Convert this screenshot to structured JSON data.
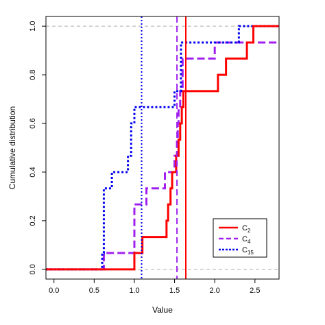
{
  "chart_data": {
    "type": "line",
    "step": "post",
    "xlabel": "Value",
    "ylabel": "Cumulative distribution",
    "xlim": [
      -0.1,
      2.8
    ],
    "ylim": [
      -0.04,
      1.04
    ],
    "xticks": [
      "0.0",
      "0.5",
      "1.0",
      "1.5",
      "2.0",
      "2.5"
    ],
    "yticks": [
      "0.0",
      "0.2",
      "0.4",
      "0.6",
      "0.8",
      "1.0"
    ],
    "reference_lines_y": [
      0,
      1
    ],
    "legend_position": "bottom-right",
    "series": [
      {
        "name": "C",
        "subscript": "2",
        "color": "#ff0000",
        "style": "solid",
        "vline": 1.64,
        "steps": [
          [
            -0.1,
            0
          ],
          [
            1.0,
            0.067
          ],
          [
            1.1,
            0.133
          ],
          [
            1.4,
            0.2
          ],
          [
            1.42,
            0.267
          ],
          [
            1.45,
            0.333
          ],
          [
            1.47,
            0.4
          ],
          [
            1.52,
            0.467
          ],
          [
            1.55,
            0.533
          ],
          [
            1.57,
            0.6
          ],
          [
            1.59,
            0.667
          ],
          [
            1.61,
            0.733
          ],
          [
            2.04,
            0.8
          ],
          [
            2.14,
            0.867
          ],
          [
            2.4,
            0.933
          ],
          [
            2.48,
            1.0
          ]
        ]
      },
      {
        "name": "C",
        "subscript": "4",
        "color": "#a020f0",
        "style": "dashed",
        "vline": 1.53,
        "steps": [
          [
            -0.1,
            0
          ],
          [
            0.62,
            0.067
          ],
          [
            1.0,
            0.267
          ],
          [
            1.15,
            0.333
          ],
          [
            1.38,
            0.4
          ],
          [
            1.5,
            0.467
          ],
          [
            1.53,
            0.533
          ],
          [
            1.54,
            0.6
          ],
          [
            1.55,
            0.667
          ],
          [
            1.57,
            0.733
          ],
          [
            1.6,
            0.867
          ],
          [
            2.0,
            0.933
          ],
          [
            2.8,
            0.933
          ]
        ]
      },
      {
        "name": "C",
        "subscript": "15",
        "color": "#0000ee",
        "style": "dotted",
        "vline": 1.09,
        "steps": [
          [
            -0.1,
            0
          ],
          [
            0.6,
            0.067
          ],
          [
            0.62,
            0.333
          ],
          [
            0.72,
            0.4
          ],
          [
            0.92,
            0.467
          ],
          [
            0.96,
            0.6
          ],
          [
            1.0,
            0.667
          ],
          [
            1.5,
            0.733
          ],
          [
            1.58,
            0.933
          ],
          [
            2.3,
            1.0
          ]
        ]
      }
    ]
  }
}
